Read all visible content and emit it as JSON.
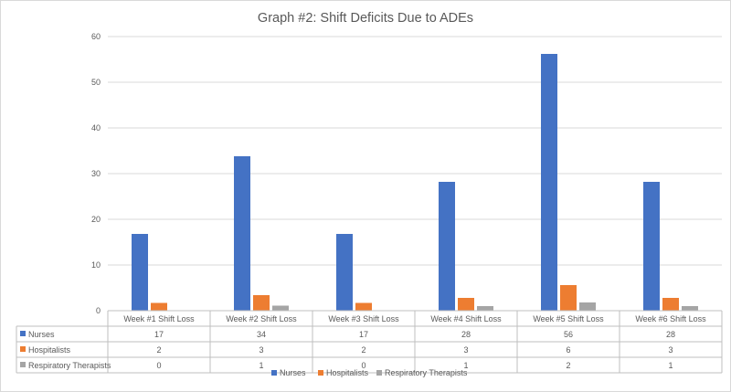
{
  "chart_data": {
    "type": "bar",
    "title": "Graph #2: Shift Deficits Due to ADEs",
    "categories": [
      "Week #1 Shift Loss",
      "Week #2 Shift Loss",
      "Week #3 Shift Loss",
      "Week #4 Shift Loss",
      "Week #5 Shift Loss",
      "Week #6 Shift Loss"
    ],
    "series": [
      {
        "name": "Nurses",
        "color": "#4472c4",
        "values": [
          17,
          34,
          17,
          28,
          56,
          28
        ]
      },
      {
        "name": "Hospitalists",
        "color": "#ed7d31",
        "values": [
          2,
          3,
          2,
          3,
          6,
          3
        ]
      },
      {
        "name": "Respiratory Therapists",
        "color": "#a5a5a5",
        "values": [
          0,
          1,
          0,
          1,
          2,
          1
        ]
      }
    ],
    "bar_heights": {
      "Nurses": [
        16.8,
        33.8,
        16.8,
        28.2,
        56.2,
        28.2
      ],
      "Hospitalists": [
        1.7,
        3.4,
        1.7,
        2.8,
        5.6,
        2.8
      ],
      "Respiratory Therapists": [
        0,
        1.1,
        0,
        1.0,
        1.8,
        1.0
      ]
    },
    "yticks": [
      0,
      10,
      20,
      30,
      40,
      50,
      60
    ],
    "ylim": [
      0,
      60
    ],
    "grid": true,
    "legend": "bottom",
    "data_table": true
  }
}
